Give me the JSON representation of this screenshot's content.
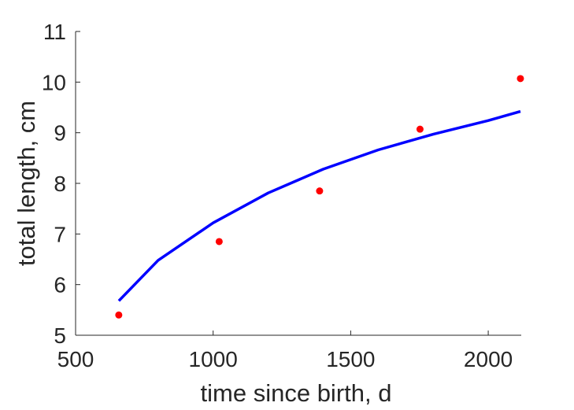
{
  "chart_data": {
    "type": "scatter",
    "title": "",
    "xlabel": "time since birth, d",
    "ylabel": "total length, cm",
    "xlim": [
      500,
      2120
    ],
    "ylim": [
      5,
      11
    ],
    "x_ticks": [
      500,
      1000,
      1500,
      2000
    ],
    "y_ticks": [
      5,
      6,
      7,
      8,
      9,
      10,
      11
    ],
    "x_tick_labels": [
      "500",
      "1000",
      "1500",
      "2000"
    ],
    "y_tick_labels": [
      "5",
      "6",
      "7",
      "8",
      "9",
      "10",
      "11"
    ],
    "grid": false,
    "legend": "none",
    "series": [
      {
        "kind": "points",
        "color": "#ff0000",
        "x": [
          657,
          1022,
          1387,
          1752,
          2117
        ],
        "y": [
          5.4,
          6.85,
          7.85,
          9.07,
          10.07
        ]
      },
      {
        "kind": "line",
        "color": "#0000ff",
        "x": [
          657,
          800,
          1000,
          1200,
          1400,
          1600,
          1800,
          2000,
          2117
        ],
        "y": [
          5.68,
          6.48,
          7.22,
          7.81,
          8.28,
          8.66,
          8.97,
          9.24,
          9.42
        ]
      }
    ]
  }
}
